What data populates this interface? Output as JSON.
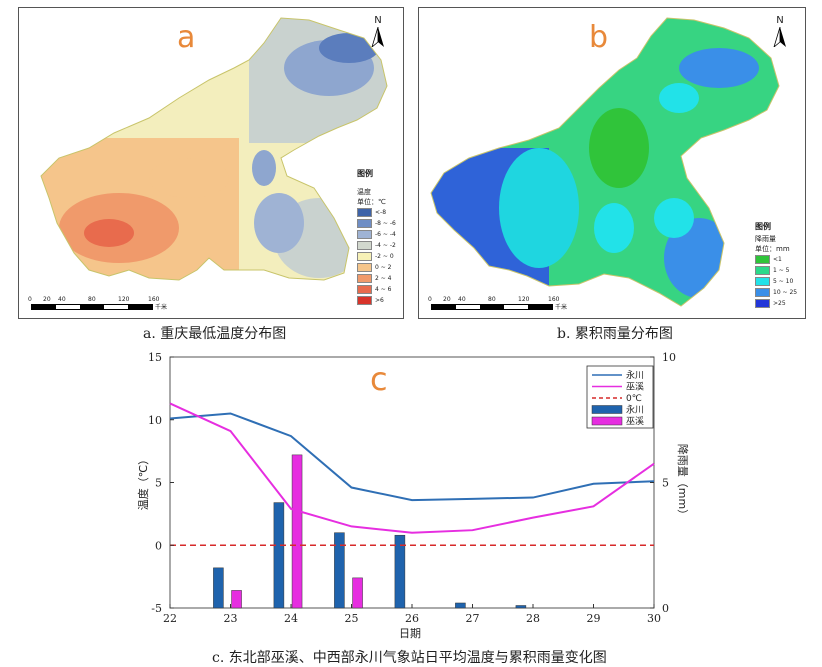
{
  "maps": {
    "a": {
      "letter": "a",
      "north": "N",
      "legend_title": "图例",
      "legend_sub1": "温度",
      "legend_sub2": "单位：℃",
      "legend_items": [
        {
          "label": "<-8",
          "color": "#3e63a8"
        },
        {
          "label": "-8 ~ -6",
          "color": "#6f8ec5"
        },
        {
          "label": "-6 ~ -4",
          "color": "#9fb3d4"
        },
        {
          "label": "-4 ~ -2",
          "color": "#d2d8ce"
        },
        {
          "label": "-2 ~ 0",
          "color": "#f7f1b7"
        },
        {
          "label": "0 ~ 2",
          "color": "#f5c58b"
        },
        {
          "label": "2 ~ 4",
          "color": "#f09a6b"
        },
        {
          "label": "4 ~ 6",
          "color": "#e86b4d"
        },
        {
          "label": ">6",
          "color": "#d8342a"
        }
      ],
      "scale_labels": [
        "0",
        "20",
        "40",
        "80",
        "120",
        "160"
      ],
      "scale_unit": "千米",
      "caption": "a. 重庆最低温度分布图"
    },
    "b": {
      "letter": "b",
      "north": "N",
      "legend_title": "图例",
      "legend_sub1": "降雨量",
      "legend_sub2": "单位：mm",
      "legend_items": [
        {
          "label": "<1",
          "color": "#2fc43a"
        },
        {
          "label": "1 ~ 5",
          "color": "#2bd98a"
        },
        {
          "label": "5 ~ 10",
          "color": "#22e2e8"
        },
        {
          "label": "10 ~ 25",
          "color": "#3a8fe8"
        },
        {
          "label": ">25",
          "color": "#2236d8"
        }
      ],
      "scale_labels": [
        "0",
        "20",
        "40",
        "80",
        "120",
        "160"
      ],
      "scale_unit": "千米",
      "caption": "b. 累积雨量分布图"
    }
  },
  "chart_data": {
    "type": "line",
    "letter": "c",
    "caption": "c. 东北部巫溪、中西部永川气象站日平均温度与累积雨量变化图",
    "xlabel": "日期",
    "ylabel_left": "温度（℃）",
    "ylabel_right": "降雨量（mm）",
    "x": [
      22,
      23,
      24,
      25,
      26,
      27,
      28,
      29,
      30
    ],
    "ylim_left": [
      -5,
      15
    ],
    "yticks_left": [
      -5,
      0,
      5,
      10,
      15
    ],
    "ylim_right": [
      0,
      10
    ],
    "yticks_right": [
      0,
      5,
      10
    ],
    "temperature_series": [
      {
        "name": "永川",
        "color": "#2f6fb5",
        "x": [
          22,
          23,
          24,
          25,
          26,
          27,
          28,
          29,
          30
        ],
        "values": [
          10.1,
          10.5,
          8.7,
          4.6,
          3.6,
          3.7,
          3.8,
          4.9,
          5.1
        ]
      },
      {
        "name": "巫溪",
        "color": "#e62ee0",
        "x": [
          22,
          23,
          24,
          25,
          26,
          27,
          28,
          29,
          30
        ],
        "values": [
          11.3,
          9.1,
          2.9,
          1.5,
          1.0,
          1.2,
          2.2,
          3.1,
          6.5
        ]
      }
    ],
    "zero_line": {
      "name": "0℃",
      "value": 0,
      "color": "#d62a2a"
    },
    "rain_series": [
      {
        "name": "永川",
        "color": "#1f63ad",
        "x": [
          22.8,
          23.8,
          24.8,
          25.8,
          26.8,
          27.8
        ],
        "values": [
          1.6,
          4.2,
          3.0,
          2.9,
          0.2,
          0.1
        ]
      },
      {
        "name": "巫溪",
        "color": "#e62ee0",
        "x": [
          23.1,
          24.1,
          25.1
        ],
        "values": [
          0.7,
          6.1,
          1.2
        ]
      }
    ],
    "legend": [
      "永川",
      "巫溪",
      "0℃",
      "永川",
      "巫溪"
    ],
    "legend_position": "top-right"
  }
}
